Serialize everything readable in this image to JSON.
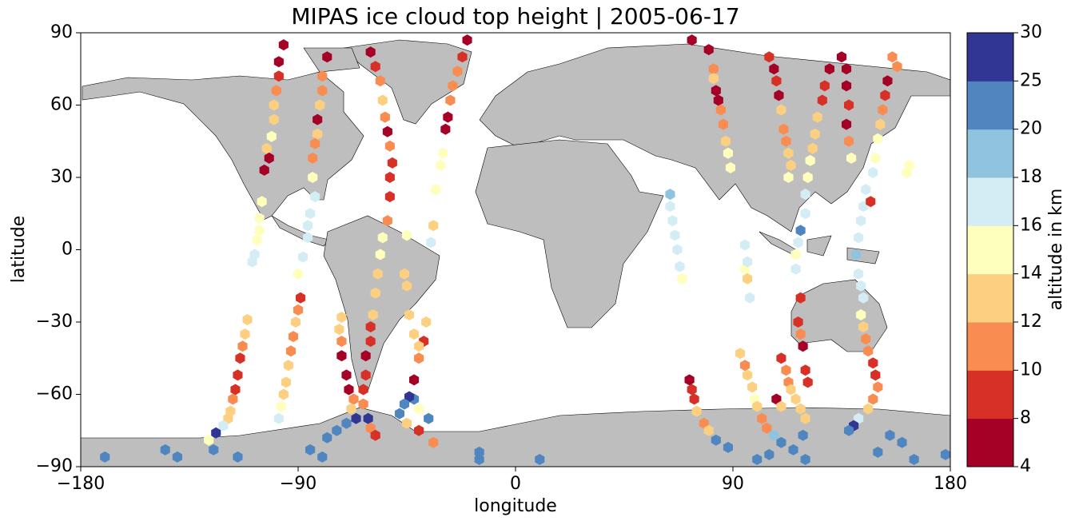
{
  "chart_data": {
    "type": "scatter",
    "title": "MIPAS ice cloud top height | 2005-06-17",
    "x_label": "longitude",
    "y_label": "latitude",
    "xlim": [
      -180,
      180
    ],
    "xticks": [
      {
        "value": -180,
        "label": "−180"
      },
      {
        "value": -90,
        "label": "−90"
      },
      0,
      90,
      180
    ],
    "ylim": [
      -90,
      90
    ],
    "yticks": [
      {
        "value": -90,
        "label": "−90"
      },
      {
        "value": -60,
        "label": "−60"
      },
      {
        "value": -30,
        "label": "−30"
      },
      0,
      30,
      60,
      90
    ],
    "colorbar": {
      "label": "altitude in km",
      "boundaries": [
        4,
        8,
        10,
        12,
        14,
        16,
        18,
        20,
        25,
        30
      ],
      "colors": [
        "#a50026",
        "#d73027",
        "#f88c51",
        "#fdd081",
        "#fefebd",
        "#d4edf4",
        "#90c3de",
        "#4f86c0",
        "#313695"
      ]
    },
    "points": [
      [
        -96,
        85,
        6
      ],
      [
        -98,
        78,
        6
      ],
      [
        -98,
        72,
        8
      ],
      [
        -99,
        66,
        10
      ],
      [
        -100,
        60,
        12
      ],
      [
        -100,
        54,
        13
      ],
      [
        -101,
        47,
        15
      ],
      [
        -103,
        42,
        13
      ],
      [
        -102,
        38,
        6
      ],
      [
        -104,
        33,
        7
      ],
      [
        -105,
        20,
        15
      ],
      [
        -106,
        13,
        15
      ],
      [
        -106,
        8,
        15
      ],
      [
        -107,
        4,
        14
      ],
      [
        -108,
        -2,
        17
      ],
      [
        -109,
        -5,
        17
      ],
      [
        -111,
        -29,
        13
      ],
      [
        -112,
        -35,
        12
      ],
      [
        -113,
        -40,
        11
      ],
      [
        -114,
        -45,
        8
      ],
      [
        -115,
        -52,
        8
      ],
      [
        -116,
        -58,
        9
      ],
      [
        -117,
        -62,
        11
      ],
      [
        -118,
        -67,
        12
      ],
      [
        -119,
        -70,
        13
      ],
      [
        -121,
        -73,
        17
      ],
      [
        -124,
        -76,
        28
      ],
      [
        -127,
        -79,
        15
      ],
      [
        -78,
        80,
        6
      ],
      [
        -80,
        72,
        10
      ],
      [
        -80,
        66,
        11
      ],
      [
        -81,
        60,
        12
      ],
      [
        -82,
        54,
        6
      ],
      [
        -82,
        48,
        12
      ],
      [
        -83,
        44,
        11
      ],
      [
        -84,
        38,
        11
      ],
      [
        -84,
        30,
        14
      ],
      [
        -83,
        22,
        17
      ],
      [
        -85,
        15,
        17
      ],
      [
        -86,
        10,
        16
      ],
      [
        -86,
        5,
        17
      ],
      [
        -88,
        -3,
        16
      ],
      [
        -90,
        -10,
        15
      ],
      [
        -89,
        -20,
        9
      ],
      [
        -90,
        -25,
        11
      ],
      [
        -91,
        -30,
        12
      ],
      [
        -92,
        -36,
        11
      ],
      [
        -93,
        -42,
        10
      ],
      [
        -94,
        -48,
        12
      ],
      [
        -95,
        -55,
        13
      ],
      [
        -96,
        -60,
        13
      ],
      [
        -97,
        -65,
        14
      ],
      [
        -98,
        -70,
        17
      ],
      [
        -60,
        82,
        6
      ],
      [
        -58,
        76,
        8
      ],
      [
        -56,
        70,
        10
      ],
      [
        -55,
        62,
        12
      ],
      [
        -54,
        55,
        10
      ],
      [
        -53,
        49,
        6
      ],
      [
        -52,
        43,
        11
      ],
      [
        -51,
        36,
        8
      ],
      [
        -52,
        30,
        8
      ],
      [
        -52,
        22,
        9
      ],
      [
        -53,
        12,
        10
      ],
      [
        -55,
        5,
        14
      ],
      [
        -56,
        -2,
        15
      ],
      [
        -57,
        -10,
        13
      ],
      [
        -58,
        -18,
        13
      ],
      [
        -59,
        -27,
        12
      ],
      [
        -60,
        -32,
        9
      ],
      [
        -60,
        -38,
        9
      ],
      [
        -62,
        -44,
        6
      ],
      [
        -62,
        -52,
        8
      ],
      [
        -63,
        -58,
        9
      ],
      [
        -63,
        -64,
        10
      ],
      [
        -61,
        -70,
        25
      ],
      [
        -60,
        -74,
        11
      ],
      [
        -58,
        -77,
        9
      ],
      [
        -72,
        -28,
        13
      ],
      [
        -73,
        -33,
        12
      ],
      [
        -72,
        -38,
        10
      ],
      [
        -72,
        -44,
        6
      ],
      [
        -70,
        -52,
        6
      ],
      [
        -69,
        -58,
        7
      ],
      [
        -67,
        -62,
        10
      ],
      [
        -68,
        -66,
        12
      ],
      [
        -66,
        -70,
        28
      ],
      [
        -70,
        -72,
        22
      ],
      [
        -74,
        -75,
        22
      ],
      [
        -78,
        -78,
        22
      ],
      [
        -20,
        87,
        6
      ],
      [
        -22,
        80,
        8
      ],
      [
        -24,
        74,
        11
      ],
      [
        -26,
        68,
        11
      ],
      [
        -27,
        62,
        10
      ],
      [
        -28,
        55,
        6
      ],
      [
        -29,
        50,
        6
      ],
      [
        -30,
        40,
        15
      ],
      [
        -31,
        35,
        15
      ],
      [
        -33,
        25,
        15
      ],
      [
        -34,
        10,
        13
      ],
      [
        -35,
        3,
        17
      ],
      [
        -37,
        -30,
        13
      ],
      [
        -38,
        -38,
        9
      ],
      [
        -40,
        -45,
        10
      ],
      [
        -42,
        -54,
        6
      ],
      [
        -42,
        -62,
        22
      ],
      [
        -40,
        -66,
        14
      ],
      [
        -36,
        -70,
        20
      ],
      [
        -45,
        6,
        15
      ],
      [
        -46,
        -10,
        13
      ],
      [
        -45,
        -15,
        13
      ],
      [
        -44,
        -27,
        13
      ],
      [
        -42,
        -35,
        12
      ],
      [
        -40,
        -40,
        12
      ],
      [
        -44,
        -61,
        28
      ],
      [
        -46,
        -64,
        22
      ],
      [
        -48,
        -68,
        22
      ],
      [
        -45,
        -72,
        12
      ],
      [
        -40,
        -75,
        9
      ],
      [
        -34,
        -80,
        11
      ],
      [
        73,
        87,
        6
      ],
      [
        80,
        83,
        7
      ],
      [
        82,
        75,
        10
      ],
      [
        82,
        71,
        12
      ],
      [
        83,
        66,
        6
      ],
      [
        84,
        62,
        6
      ],
      [
        85,
        58,
        11
      ],
      [
        86,
        52,
        11
      ],
      [
        87,
        45,
        13
      ],
      [
        88,
        40,
        14
      ],
      [
        89,
        34,
        15
      ],
      [
        64,
        23,
        19
      ],
      [
        64,
        18,
        17
      ],
      [
        65,
        12,
        17
      ],
      [
        66,
        6,
        17
      ],
      [
        67,
        0,
        17
      ],
      [
        68,
        -7,
        17
      ],
      [
        69,
        -12,
        15
      ],
      [
        72,
        -54,
        6
      ],
      [
        73,
        -58,
        9
      ],
      [
        74,
        -62,
        8
      ],
      [
        75,
        -67,
        13
      ],
      [
        78,
        -72,
        10
      ],
      [
        80,
        -75,
        12
      ],
      [
        83,
        -79,
        22
      ],
      [
        88,
        -82,
        22
      ],
      [
        95,
        -8,
        15
      ],
      [
        96,
        -12,
        13
      ],
      [
        97,
        -20,
        17
      ],
      [
        95,
        2,
        17
      ],
      [
        96,
        -5,
        17
      ],
      [
        93,
        -43,
        12
      ],
      [
        95,
        -48,
        11
      ],
      [
        96,
        -52,
        12
      ],
      [
        98,
        -57,
        13
      ],
      [
        99,
        -62,
        15
      ],
      [
        100,
        -65,
        12
      ],
      [
        102,
        -70,
        11
      ],
      [
        104,
        -74,
        11
      ],
      [
        107,
        -77,
        18
      ],
      [
        110,
        -80,
        23
      ],
      [
        105,
        -85,
        22
      ],
      [
        115,
        -83,
        22
      ],
      [
        105,
        80,
        9
      ],
      [
        107,
        75,
        6
      ],
      [
        108,
        70,
        8
      ],
      [
        109,
        64,
        6
      ],
      [
        110,
        58,
        12
      ],
      [
        111,
        50,
        11
      ],
      [
        112,
        45,
        11
      ],
      [
        113,
        40,
        13
      ],
      [
        114,
        35,
        13
      ],
      [
        113,
        30,
        15
      ],
      [
        110,
        -45,
        8
      ],
      [
        112,
        -50,
        10
      ],
      [
        113,
        -55,
        11
      ],
      [
        114,
        -58,
        12
      ],
      [
        116,
        -62,
        12
      ],
      [
        118,
        -66,
        13
      ],
      [
        120,
        -70,
        13
      ],
      [
        119,
        -77,
        22
      ],
      [
        135,
        80,
        6
      ],
      [
        130,
        75,
        7
      ],
      [
        128,
        68,
        8
      ],
      [
        127,
        62,
        8
      ],
      [
        125,
        55,
        12
      ],
      [
        124,
        48,
        12
      ],
      [
        123,
        42,
        13
      ],
      [
        122,
        37,
        14
      ],
      [
        121,
        30,
        15
      ],
      [
        120,
        23,
        16
      ],
      [
        120,
        15,
        17
      ],
      [
        118,
        8,
        20
      ],
      [
        117,
        3,
        17
      ],
      [
        116,
        -2,
        15
      ],
      [
        116,
        -8,
        17
      ],
      [
        118,
        -20,
        9
      ],
      [
        117,
        -30,
        8
      ],
      [
        118,
        -35,
        11
      ],
      [
        119,
        -40,
        6
      ],
      [
        120,
        -50,
        8
      ],
      [
        121,
        -55,
        9
      ],
      [
        108,
        -62,
        6
      ],
      [
        110,
        -65,
        12
      ],
      [
        137,
        75,
        6
      ],
      [
        137,
        68,
        6
      ],
      [
        138,
        60,
        8
      ],
      [
        137,
        52,
        6
      ],
      [
        138,
        45,
        10
      ],
      [
        139,
        38,
        14
      ],
      [
        145,
        25,
        17
      ],
      [
        144,
        18,
        17
      ],
      [
        143,
        12,
        17
      ],
      [
        142,
        5,
        16
      ],
      [
        141,
        -2,
        18
      ],
      [
        142,
        -10,
        17
      ],
      [
        143,
        -15,
        17
      ],
      [
        144,
        -20,
        17
      ],
      [
        143,
        -27,
        15
      ],
      [
        144,
        -32,
        12
      ],
      [
        145,
        -37,
        10
      ],
      [
        146,
        -42,
        10
      ],
      [
        148,
        -47,
        8
      ],
      [
        149,
        -52,
        9
      ],
      [
        150,
        -57,
        10
      ],
      [
        148,
        -62,
        10
      ],
      [
        146,
        -66,
        13
      ],
      [
        142,
        -70,
        16
      ],
      [
        140,
        -73,
        28
      ],
      [
        138,
        -75,
        20
      ],
      [
        156,
        80,
        11
      ],
      [
        158,
        76,
        10
      ],
      [
        154,
        70,
        6
      ],
      [
        153,
        64,
        8
      ],
      [
        152,
        58,
        10
      ],
      [
        151,
        52,
        13
      ],
      [
        150,
        46,
        14
      ],
      [
        149,
        38,
        15
      ],
      [
        148,
        32,
        17
      ],
      [
        147,
        20,
        8
      ],
      [
        162,
        32,
        15
      ],
      [
        163,
        35,
        15
      ],
      [
        -170,
        -86,
        22
      ],
      [
        -145,
        -83,
        22
      ],
      [
        -140,
        -86,
        22
      ],
      [
        -125,
        -83,
        22
      ],
      [
        -115,
        -86,
        22
      ],
      [
        -85,
        -83,
        22
      ],
      [
        -80,
        -86,
        22
      ],
      [
        -15,
        -84,
        22
      ],
      [
        -15,
        -87,
        22
      ],
      [
        10,
        -87,
        22
      ],
      [
        100,
        -87,
        22
      ],
      [
        120,
        -87,
        22
      ],
      [
        150,
        -84,
        22
      ],
      [
        165,
        -87,
        22
      ],
      [
        178,
        -85,
        22
      ],
      [
        160,
        -80,
        22
      ],
      [
        155,
        -77,
        22
      ]
    ]
  }
}
